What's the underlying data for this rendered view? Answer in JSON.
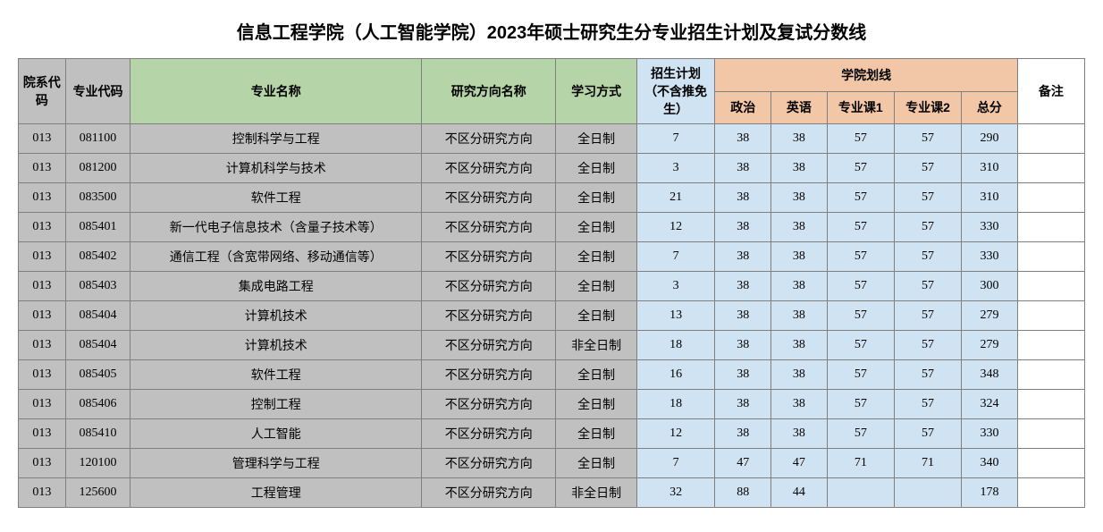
{
  "title": "信息工程学院（人工智能学院）2023年硕士研究生分专业招生计划及复试分数线",
  "headers": {
    "dept_code": "院系代码",
    "major_code": "专业代码",
    "major_name": "专业名称",
    "direction": "研究方向名称",
    "study_mode": "学习方式",
    "enroll_plan": "招生计划（不含推免生）",
    "score_line": "学院划线",
    "politics": "政治",
    "english": "英语",
    "subject1": "专业课1",
    "subject2": "专业课2",
    "total": "总分",
    "remark": "备注"
  },
  "styling": {
    "header_grey": "#c0c0c0",
    "header_green": "#b5d4a7",
    "header_blue": "#d0e3f2",
    "header_peach": "#f2c7a7",
    "border_color": "#7f7f7f",
    "row_grey": "#c0c0c0",
    "row_blue": "#d0e3f2",
    "row_white": "#ffffff",
    "title_fontsize": 20,
    "cell_fontsize": 14
  },
  "rows": [
    {
      "dept": "013",
      "major": "081100",
      "name": "控制科学与工程",
      "dir": "不区分研究方向",
      "mode": "全日制",
      "plan": "7",
      "pol": "38",
      "eng": "38",
      "s1": "57",
      "s2": "57",
      "tot": "290",
      "note": ""
    },
    {
      "dept": "013",
      "major": "081200",
      "name": "计算机科学与技术",
      "dir": "不区分研究方向",
      "mode": "全日制",
      "plan": "3",
      "pol": "38",
      "eng": "38",
      "s1": "57",
      "s2": "57",
      "tot": "310",
      "note": ""
    },
    {
      "dept": "013",
      "major": "083500",
      "name": "软件工程",
      "dir": "不区分研究方向",
      "mode": "全日制",
      "plan": "21",
      "pol": "38",
      "eng": "38",
      "s1": "57",
      "s2": "57",
      "tot": "310",
      "note": ""
    },
    {
      "dept": "013",
      "major": "085401",
      "name": "新一代电子信息技术（含量子技术等）",
      "dir": "不区分研究方向",
      "mode": "全日制",
      "plan": "12",
      "pol": "38",
      "eng": "38",
      "s1": "57",
      "s2": "57",
      "tot": "330",
      "note": ""
    },
    {
      "dept": "013",
      "major": "085402",
      "name": "通信工程（含宽带网络、移动通信等）",
      "dir": "不区分研究方向",
      "mode": "全日制",
      "plan": "7",
      "pol": "38",
      "eng": "38",
      "s1": "57",
      "s2": "57",
      "tot": "330",
      "note": ""
    },
    {
      "dept": "013",
      "major": "085403",
      "name": "集成电路工程",
      "dir": "不区分研究方向",
      "mode": "全日制",
      "plan": "3",
      "pol": "38",
      "eng": "38",
      "s1": "57",
      "s2": "57",
      "tot": "300",
      "note": ""
    },
    {
      "dept": "013",
      "major": "085404",
      "name": "计算机技术",
      "dir": "不区分研究方向",
      "mode": "全日制",
      "plan": "13",
      "pol": "38",
      "eng": "38",
      "s1": "57",
      "s2": "57",
      "tot": "279",
      "note": ""
    },
    {
      "dept": "013",
      "major": "085404",
      "name": "计算机技术",
      "dir": "不区分研究方向",
      "mode": "非全日制",
      "plan": "18",
      "pol": "38",
      "eng": "38",
      "s1": "57",
      "s2": "57",
      "tot": "279",
      "note": ""
    },
    {
      "dept": "013",
      "major": "085405",
      "name": "软件工程",
      "dir": "不区分研究方向",
      "mode": "全日制",
      "plan": "16",
      "pol": "38",
      "eng": "38",
      "s1": "57",
      "s2": "57",
      "tot": "348",
      "note": ""
    },
    {
      "dept": "013",
      "major": "085406",
      "name": "控制工程",
      "dir": "不区分研究方向",
      "mode": "全日制",
      "plan": "18",
      "pol": "38",
      "eng": "38",
      "s1": "57",
      "s2": "57",
      "tot": "324",
      "note": ""
    },
    {
      "dept": "013",
      "major": "085410",
      "name": "人工智能",
      "dir": "不区分研究方向",
      "mode": "全日制",
      "plan": "12",
      "pol": "38",
      "eng": "38",
      "s1": "57",
      "s2": "57",
      "tot": "330",
      "note": ""
    },
    {
      "dept": "013",
      "major": "120100",
      "name": "管理科学与工程",
      "dir": "不区分研究方向",
      "mode": "全日制",
      "plan": "7",
      "pol": "47",
      "eng": "47",
      "s1": "71",
      "s2": "71",
      "tot": "340",
      "note": ""
    },
    {
      "dept": "013",
      "major": "125600",
      "name": "工程管理",
      "dir": "不区分研究方向",
      "mode": "非全日制",
      "plan": "32",
      "pol": "88",
      "eng": "44",
      "s1": "",
      "s2": "",
      "tot": "178",
      "note": ""
    }
  ]
}
